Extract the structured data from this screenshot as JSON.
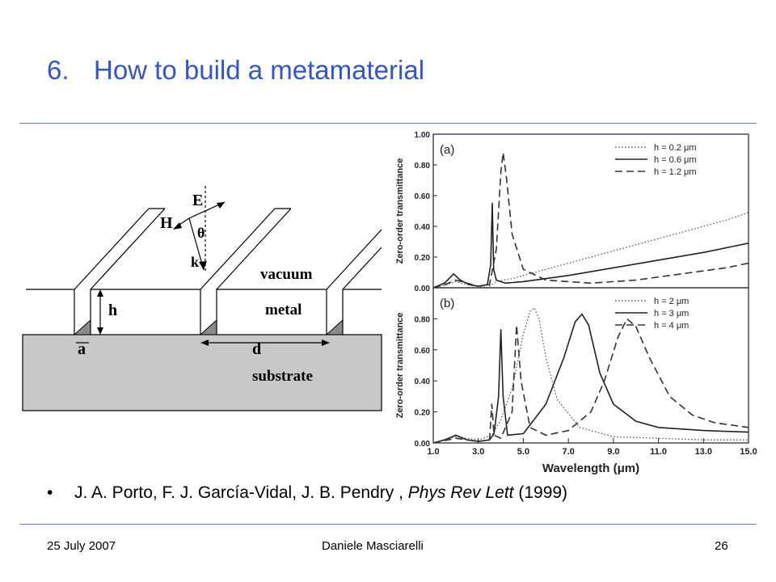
{
  "slide": {
    "number": "6.",
    "title": "How to build a metamaterial",
    "citation": {
      "bullet": "•",
      "authors": "J. A. Porto, F. J. García-Vidal, J. B. Pendry , ",
      "journal": "Phys Rev Lett",
      "year": " (1999)"
    },
    "footer": {
      "date": "25 July 2007",
      "author": "Daniele Masciarelli",
      "page": "26"
    }
  },
  "diagram": {
    "labels": {
      "E": "E",
      "H": "H",
      "theta": "θ",
      "k": "k",
      "vacuum": "vacuum",
      "metal": "metal",
      "substrate": "substrate",
      "h": "h",
      "a": "a",
      "d": "d"
    },
    "colors": {
      "substrate": "#c8c8c8",
      "slit": "#8a8a8a"
    }
  },
  "chart_data": [
    {
      "type": "line",
      "panel_label": "(a)",
      "ylabel": "Zero-order transmittance",
      "xlim": [
        1.0,
        15.0
      ],
      "ylim": [
        0,
        1.0
      ],
      "y_ticks": [
        "0.00",
        "0.20",
        "0.40",
        "0.60",
        "0.80",
        "1.00"
      ],
      "series": [
        {
          "name": "h = 0.2 μm",
          "style": "dotted",
          "x": [
            1.0,
            1.6,
            2.0,
            2.5,
            3.0,
            3.4,
            3.6,
            3.8,
            4.5,
            6,
            8,
            10,
            12,
            14,
            15
          ],
          "y": [
            0.0,
            0.02,
            0.04,
            0.02,
            0.01,
            0.0,
            0.02,
            0.04,
            0.06,
            0.12,
            0.2,
            0.28,
            0.36,
            0.44,
            0.49
          ]
        },
        {
          "name": "h = 0.6 μm",
          "style": "solid",
          "x": [
            1.0,
            1.5,
            1.9,
            2.2,
            2.6,
            3.0,
            3.4,
            3.55,
            3.62,
            3.68,
            3.8,
            4.2,
            5,
            7,
            9,
            11,
            13,
            15
          ],
          "y": [
            0.0,
            0.03,
            0.09,
            0.05,
            0.02,
            0.01,
            0.02,
            0.15,
            0.55,
            0.12,
            0.05,
            0.03,
            0.04,
            0.08,
            0.13,
            0.18,
            0.23,
            0.29
          ]
        },
        {
          "name": "h = 1.2 μm",
          "style": "dashed",
          "x": [
            1.0,
            1.5,
            2.0,
            2.5,
            3.0,
            3.5,
            3.8,
            4.0,
            4.1,
            4.25,
            4.5,
            5.0,
            6.0,
            8,
            10,
            12,
            14,
            15
          ],
          "y": [
            0.0,
            0.02,
            0.05,
            0.03,
            0.01,
            0.02,
            0.25,
            0.75,
            0.88,
            0.72,
            0.35,
            0.12,
            0.05,
            0.03,
            0.05,
            0.09,
            0.13,
            0.16
          ]
        }
      ]
    },
    {
      "type": "line",
      "panel_label": "(b)",
      "xlabel": "Wavelength (μm)",
      "ylabel": "Zero-order transmittance",
      "xlim": [
        1.0,
        15.0
      ],
      "ylim": [
        0,
        1.0
      ],
      "y_ticks": [
        "0.00",
        "0.20",
        "0.40",
        "0.60",
        "0.80"
      ],
      "x_ticks": [
        "1.0",
        "3.0",
        "5.0",
        "7.0",
        "9.0",
        "11.0",
        "13.0",
        "15.0"
      ],
      "series": [
        {
          "name": "h = 2 μm",
          "style": "dotted",
          "x": [
            1.0,
            2.0,
            3.0,
            3.6,
            4.0,
            4.5,
            5.0,
            5.3,
            5.5,
            5.7,
            6.0,
            6.5,
            7.5,
            9,
            11,
            13,
            15
          ],
          "y": [
            0.0,
            0.04,
            0.02,
            0.05,
            0.15,
            0.35,
            0.7,
            0.85,
            0.87,
            0.8,
            0.55,
            0.28,
            0.1,
            0.04,
            0.03,
            0.02,
            0.02
          ]
        },
        {
          "name": "h = 3 μm",
          "style": "solid",
          "x": [
            1.0,
            1.5,
            2.0,
            2.5,
            3.0,
            3.5,
            3.7,
            3.9,
            4.0,
            4.1,
            4.3,
            5.0,
            6.0,
            6.8,
            7.3,
            7.6,
            7.9,
            8.4,
            9.0,
            10,
            11,
            13,
            15
          ],
          "y": [
            0.0,
            0.02,
            0.05,
            0.02,
            0.01,
            0.02,
            0.06,
            0.3,
            0.73,
            0.3,
            0.05,
            0.06,
            0.25,
            0.55,
            0.78,
            0.83,
            0.76,
            0.45,
            0.25,
            0.14,
            0.1,
            0.08,
            0.07
          ]
        },
        {
          "name": "h = 4 μm",
          "style": "dashed",
          "x": [
            1.0,
            2.0,
            3.0,
            3.5,
            3.6,
            3.7,
            4.0,
            4.5,
            4.7,
            4.9,
            5.3,
            6.0,
            7.0,
            8.0,
            8.6,
            9.2,
            9.6,
            10.0,
            10.6,
            11.5,
            12.5,
            13.5,
            15
          ],
          "y": [
            0.0,
            0.03,
            0.01,
            0.02,
            0.25,
            0.05,
            0.03,
            0.2,
            0.76,
            0.4,
            0.1,
            0.05,
            0.08,
            0.2,
            0.4,
            0.68,
            0.8,
            0.75,
            0.55,
            0.3,
            0.18,
            0.13,
            0.1
          ]
        }
      ]
    }
  ]
}
